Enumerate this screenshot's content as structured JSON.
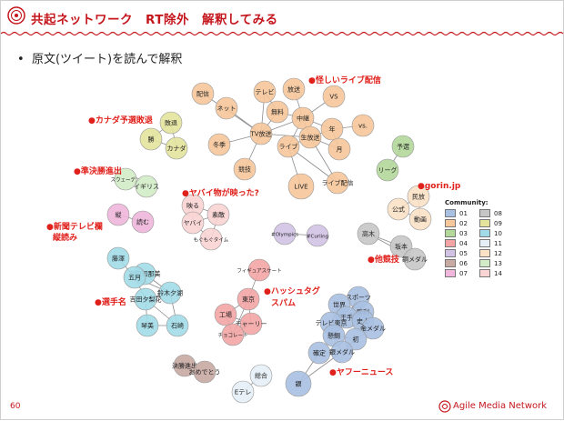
{
  "header": {
    "title": "共起ネットワーク　RT除外　解釈してみる"
  },
  "bullet": {
    "marker": "•",
    "text": "原文(ツイート)を読んで解釈"
  },
  "annotations": [
    {
      "id": "a1",
      "text": "●怪しいライブ配信"
    },
    {
      "id": "a2",
      "text": "●カナダ予選敗退"
    },
    {
      "id": "a3",
      "text": "●準決勝進出"
    },
    {
      "id": "a4",
      "text": "●ヤバイ物が映った?"
    },
    {
      "id": "a5",
      "text": "●gorin.jp"
    },
    {
      "id": "a6",
      "text": "●新聞テレビ欄"
    },
    {
      "id": "a7",
      "text": "縦読み"
    },
    {
      "id": "a8",
      "text": "●他競技"
    },
    {
      "id": "a9",
      "text": "●ハッシュタグ"
    },
    {
      "id": "a10",
      "text": "スパム"
    },
    {
      "id": "a11",
      "text": "●選手名"
    },
    {
      "id": "a12",
      "text": "●ヤフーニュース"
    }
  ],
  "communities": {
    "01": "#a8c0e2",
    "02": "#f6c79a",
    "03": "#b2d89a",
    "04": "#f3a5a5",
    "05": "#d2c3e6",
    "06": "#c8aaa3",
    "07": "#f0b6dc",
    "08": "#c6c6c6",
    "09": "#e3e39c",
    "10": "#a2dbe8",
    "11": "#e6eff6",
    "12": "#fbe1c6",
    "13": "#d3ecc8",
    "14": "#fbd4d4"
  },
  "nodes": [
    {
      "id": "n1",
      "label": "配信",
      "community": "02"
    },
    {
      "id": "n2",
      "label": "ネット",
      "community": "02"
    },
    {
      "id": "n3",
      "label": "テレビ",
      "community": "02"
    },
    {
      "id": "n4",
      "label": "放送",
      "community": "02"
    },
    {
      "id": "n5",
      "label": "VS",
      "community": "02"
    },
    {
      "id": "n6",
      "label": "無料",
      "community": "02"
    },
    {
      "id": "n7",
      "label": "中継",
      "community": "02"
    },
    {
      "id": "n8",
      "label": "TV放送",
      "community": "02"
    },
    {
      "id": "n9",
      "label": "年",
      "community": "02"
    },
    {
      "id": "n10",
      "label": "vs.",
      "community": "02"
    },
    {
      "id": "n11",
      "label": "冬季",
      "community": "02"
    },
    {
      "id": "n12",
      "label": "生放送",
      "community": "02"
    },
    {
      "id": "n13",
      "label": "ライブ",
      "community": "02"
    },
    {
      "id": "n14",
      "label": "月",
      "community": "02"
    },
    {
      "id": "n15",
      "label": "競技",
      "community": "02"
    },
    {
      "id": "n16",
      "label": "LIVE",
      "community": "02"
    },
    {
      "id": "n17",
      "label": "ライブ配信",
      "community": "02"
    },
    {
      "id": "n18",
      "label": "敗退",
      "community": "09"
    },
    {
      "id": "n19",
      "label": "勝",
      "community": "09"
    },
    {
      "id": "n20",
      "label": "カナダ",
      "community": "09"
    },
    {
      "id": "n21",
      "label": "予選",
      "community": "03"
    },
    {
      "id": "n22",
      "label": "リーグ",
      "community": "03"
    },
    {
      "id": "n23",
      "label": "スウェーデン",
      "community": "13"
    },
    {
      "id": "n24",
      "label": "イギリス",
      "community": "13"
    },
    {
      "id": "n25",
      "label": "民放",
      "community": "12"
    },
    {
      "id": "n26",
      "label": "公式",
      "community": "12"
    },
    {
      "id": "n27",
      "label": "動画",
      "community": "12"
    },
    {
      "id": "n28",
      "label": "映る",
      "community": "14"
    },
    {
      "id": "n29",
      "label": "高木",
      "community": "08"
    },
    {
      "id": "n30",
      "label": "坂本",
      "community": "08"
    },
    {
      "id": "n31",
      "label": "銅メダル",
      "community": "08"
    },
    {
      "id": "n32",
      "label": "縦",
      "community": "07"
    },
    {
      "id": "n33",
      "label": "読む",
      "community": "07"
    },
    {
      "id": "n34",
      "label": "ヤバイ",
      "community": "14"
    },
    {
      "id": "n35",
      "label": "素敵",
      "community": "14"
    },
    {
      "id": "n36",
      "label": "もぐもぐタイム",
      "community": "14"
    },
    {
      "id": "n37",
      "label": "#Olympics",
      "community": "05"
    },
    {
      "id": "n38",
      "label": "#Curling",
      "community": "05"
    },
    {
      "id": "n39",
      "label": "藤澤",
      "community": "10"
    },
    {
      "id": "n40",
      "label": "吉田知那美",
      "community": "10"
    },
    {
      "id": "n41",
      "label": "五月",
      "community": "10"
    },
    {
      "id": "n42",
      "label": "鈴木夕湖",
      "community": "10"
    },
    {
      "id": "n43",
      "label": "吉田夕梨花",
      "community": "10"
    },
    {
      "id": "n44",
      "label": "琴美",
      "community": "10"
    },
    {
      "id": "n45",
      "label": "石崎",
      "community": "10"
    },
    {
      "id": "n46",
      "label": "フィギュアスケート",
      "community": "04"
    },
    {
      "id": "n47",
      "label": "東京",
      "community": "04"
    },
    {
      "id": "n48",
      "label": "工場",
      "community": "04"
    },
    {
      "id": "n49",
      "label": "チャーリー",
      "community": "04"
    },
    {
      "id": "n50",
      "label": "チョコレート",
      "community": "04"
    },
    {
      "id": "n51",
      "label": "スポーツ",
      "community": "01"
    },
    {
      "id": "n52",
      "label": "世界",
      "community": "01"
    },
    {
      "id": "n53",
      "label": "勝利",
      "community": "01"
    },
    {
      "id": "n54",
      "label": "王手",
      "community": "01"
    },
    {
      "id": "n55",
      "label": "テレビ東京",
      "community": "01"
    },
    {
      "id": "n56",
      "label": "史上",
      "community": "01"
    },
    {
      "id": "n57",
      "label": "金メダル",
      "community": "01"
    },
    {
      "id": "n58",
      "label": "懸鯛",
      "community": "01"
    },
    {
      "id": "n59",
      "label": "初",
      "community": "01"
    },
    {
      "id": "n60",
      "label": "確定",
      "community": "01"
    },
    {
      "id": "n61",
      "label": "銀メダル",
      "community": "01"
    },
    {
      "id": "n62",
      "label": "銀",
      "community": "01"
    },
    {
      "id": "n63",
      "label": "決勝進出",
      "community": "06"
    },
    {
      "id": "n64",
      "label": "おめでとう",
      "community": "06"
    },
    {
      "id": "n65",
      "label": "総合",
      "community": "11"
    },
    {
      "id": "n66",
      "label": "Eテレ",
      "community": "11"
    }
  ],
  "edges": [
    [
      "n1",
      "n8"
    ],
    [
      "n2",
      "n8"
    ],
    [
      "n3",
      "n8"
    ],
    [
      "n3",
      "n6"
    ],
    [
      "n4",
      "n7"
    ],
    [
      "n5",
      "n7"
    ],
    [
      "n6",
      "n8"
    ],
    [
      "n7",
      "n8"
    ],
    [
      "n7",
      "n12"
    ],
    [
      "n7",
      "n9"
    ],
    [
      "n9",
      "n12"
    ],
    [
      "n9",
      "n10"
    ],
    [
      "n9",
      "n14"
    ],
    [
      "n11",
      "n8"
    ],
    [
      "n12",
      "n14"
    ],
    [
      "n12",
      "n13"
    ],
    [
      "n13",
      "n7"
    ],
    [
      "n13",
      "n16"
    ],
    [
      "n13",
      "n17"
    ],
    [
      "n15",
      "n8"
    ],
    [
      "n12",
      "n8"
    ],
    [
      "n6",
      "n7"
    ],
    [
      "n12",
      "n17"
    ],
    [
      "n18",
      "n19"
    ],
    [
      "n19",
      "n20"
    ],
    [
      "n18",
      "n20"
    ],
    [
      "n21",
      "n22"
    ],
    [
      "n23",
      "n24"
    ],
    [
      "n25",
      "n26"
    ],
    [
      "n26",
      "n27"
    ],
    [
      "n25",
      "n27"
    ],
    [
      "n28",
      "n34"
    ],
    [
      "n28",
      "n35"
    ],
    [
      "n34",
      "n35"
    ],
    [
      "n35",
      "n36"
    ],
    [
      "n34",
      "n36"
    ],
    [
      "n29",
      "n30"
    ],
    [
      "n30",
      "n31"
    ],
    [
      "n29",
      "n31"
    ],
    [
      "n32",
      "n33"
    ],
    [
      "n37",
      "n38"
    ],
    [
      "n39",
      "n41"
    ],
    [
      "n40",
      "n41"
    ],
    [
      "n40",
      "n42"
    ],
    [
      "n41",
      "n43"
    ],
    [
      "n42",
      "n43"
    ],
    [
      "n43",
      "n44"
    ],
    [
      "n43",
      "n45"
    ],
    [
      "n42",
      "n45"
    ],
    [
      "n44",
      "n45"
    ],
    [
      "n41",
      "n42"
    ],
    [
      "n46",
      "n47"
    ],
    [
      "n47",
      "n48"
    ],
    [
      "n47",
      "n49"
    ],
    [
      "n48",
      "n49"
    ],
    [
      "n48",
      "n50"
    ],
    [
      "n49",
      "n50"
    ],
    [
      "n47",
      "n50"
    ],
    [
      "n51",
      "n53"
    ],
    [
      "n51",
      "n54"
    ],
    [
      "n52",
      "n54"
    ],
    [
      "n52",
      "n55"
    ],
    [
      "n54",
      "n55"
    ],
    [
      "n54",
      "n56"
    ],
    [
      "n55",
      "n58"
    ],
    [
      "n56",
      "n57"
    ],
    [
      "n57",
      "n59"
    ],
    [
      "n58",
      "n59"
    ],
    [
      "n59",
      "n61"
    ],
    [
      "n60",
      "n61"
    ],
    [
      "n60",
      "n62"
    ],
    [
      "n61",
      "n62"
    ],
    [
      "n55",
      "n57"
    ],
    [
      "n53",
      "n56"
    ],
    [
      "n58",
      "n61"
    ],
    [
      "n63",
      "n64"
    ],
    [
      "n65",
      "n66"
    ]
  ],
  "legend": {
    "title": "Community:",
    "items": [
      "01",
      "08",
      "02",
      "09",
      "03",
      "10",
      "04",
      "11",
      "05",
      "12",
      "06",
      "13",
      "07",
      "14"
    ]
  },
  "footer": {
    "page_number": "60",
    "brand": "Agile Media Network"
  }
}
